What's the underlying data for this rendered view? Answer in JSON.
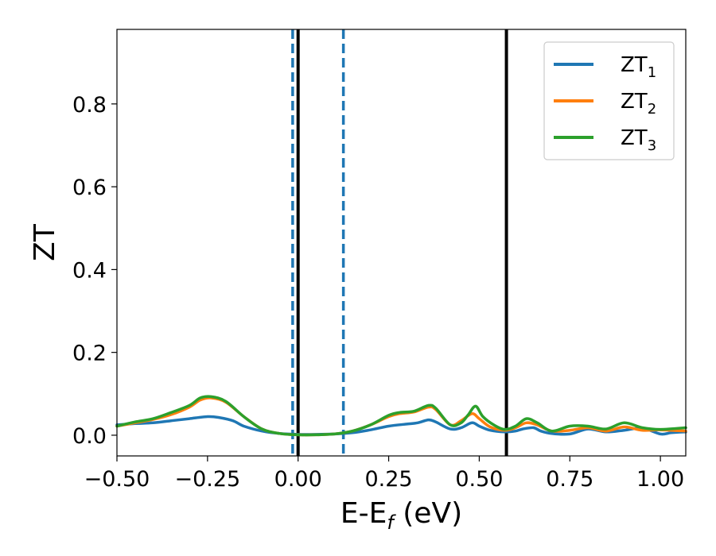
{
  "chart_data": {
    "type": "line",
    "xlabel": {
      "main": "E-E",
      "sub": "f",
      "suffix": " (eV)"
    },
    "ylabel": "ZT",
    "xlim": [
      -0.5,
      1.07
    ],
    "ylim": [
      -0.05,
      0.98
    ],
    "x_ticks": [
      -0.5,
      -0.25,
      0.0,
      0.25,
      0.5,
      0.75,
      1.0
    ],
    "x_tick_labels": [
      "−0.50",
      "−0.25",
      "0.00",
      "0.25",
      "0.50",
      "0.75",
      "1.00"
    ],
    "y_ticks": [
      0.0,
      0.2,
      0.4,
      0.6,
      0.8
    ],
    "y_tick_labels": [
      "0.0",
      "0.2",
      "0.4",
      "0.6",
      "0.8"
    ],
    "grid": false,
    "legend_position": "top-right",
    "vertical_lines": [
      {
        "x": -0.015,
        "style": "dashed",
        "color": "#1f77b4"
      },
      {
        "x": 0.125,
        "style": "dashed",
        "color": "#1f77b4"
      },
      {
        "x": 0.0,
        "style": "solid",
        "color": "#000000"
      },
      {
        "x": 0.575,
        "style": "solid",
        "color": "#000000"
      }
    ],
    "series": [
      {
        "name": "ZT",
        "name_sub": "1",
        "color": "#1f77b4",
        "x": [
          -0.5,
          -0.45,
          -0.4,
          -0.35,
          -0.3,
          -0.25,
          -0.22,
          -0.18,
          -0.15,
          -0.1,
          -0.05,
          0.0,
          0.05,
          0.1,
          0.15,
          0.2,
          0.25,
          0.3,
          0.33,
          0.36,
          0.38,
          0.42,
          0.45,
          0.48,
          0.5,
          0.53,
          0.57,
          0.6,
          0.62,
          0.65,
          0.67,
          0.7,
          0.75,
          0.8,
          0.85,
          0.9,
          0.95,
          1.0,
          1.03,
          1.07
        ],
        "y": [
          0.025,
          0.028,
          0.03,
          0.035,
          0.04,
          0.045,
          0.043,
          0.035,
          0.022,
          0.01,
          0.004,
          0.002,
          0.002,
          0.003,
          0.006,
          0.013,
          0.022,
          0.027,
          0.03,
          0.037,
          0.032,
          0.015,
          0.018,
          0.03,
          0.022,
          0.012,
          0.008,
          0.01,
          0.015,
          0.018,
          0.01,
          0.004,
          0.003,
          0.015,
          0.008,
          0.012,
          0.017,
          0.003,
          0.006,
          0.008
        ]
      },
      {
        "name": "ZT",
        "name_sub": "2",
        "color": "#ff7f0e",
        "x": [
          -0.5,
          -0.45,
          -0.4,
          -0.35,
          -0.3,
          -0.27,
          -0.24,
          -0.2,
          -0.15,
          -0.1,
          -0.05,
          0.0,
          0.05,
          0.1,
          0.15,
          0.2,
          0.25,
          0.28,
          0.32,
          0.36,
          0.38,
          0.42,
          0.45,
          0.48,
          0.5,
          0.53,
          0.57,
          0.6,
          0.63,
          0.66,
          0.7,
          0.75,
          0.8,
          0.85,
          0.9,
          0.95,
          1.0,
          1.07
        ],
        "y": [
          0.022,
          0.03,
          0.038,
          0.05,
          0.068,
          0.085,
          0.09,
          0.08,
          0.045,
          0.015,
          0.004,
          0.001,
          0.001,
          0.003,
          0.01,
          0.025,
          0.045,
          0.052,
          0.056,
          0.068,
          0.062,
          0.025,
          0.035,
          0.052,
          0.04,
          0.02,
          0.012,
          0.018,
          0.03,
          0.025,
          0.01,
          0.012,
          0.018,
          0.01,
          0.02,
          0.012,
          0.013,
          0.01
        ]
      },
      {
        "name": "ZT",
        "name_sub": "3",
        "color": "#2ca02c",
        "x": [
          -0.5,
          -0.45,
          -0.4,
          -0.35,
          -0.3,
          -0.27,
          -0.24,
          -0.2,
          -0.15,
          -0.1,
          -0.05,
          0.0,
          0.05,
          0.1,
          0.15,
          0.2,
          0.25,
          0.28,
          0.32,
          0.36,
          0.38,
          0.42,
          0.45,
          0.47,
          0.49,
          0.51,
          0.54,
          0.57,
          0.6,
          0.63,
          0.66,
          0.7,
          0.75,
          0.8,
          0.85,
          0.9,
          0.95,
          1.0,
          1.07
        ],
        "y": [
          0.022,
          0.032,
          0.04,
          0.055,
          0.072,
          0.09,
          0.093,
          0.082,
          0.045,
          0.015,
          0.004,
          0.001,
          0.001,
          0.003,
          0.01,
          0.025,
          0.048,
          0.055,
          0.058,
          0.072,
          0.065,
          0.025,
          0.03,
          0.05,
          0.07,
          0.045,
          0.025,
          0.014,
          0.022,
          0.04,
          0.03,
          0.01,
          0.022,
          0.022,
          0.015,
          0.03,
          0.018,
          0.014,
          0.018
        ]
      }
    ]
  }
}
